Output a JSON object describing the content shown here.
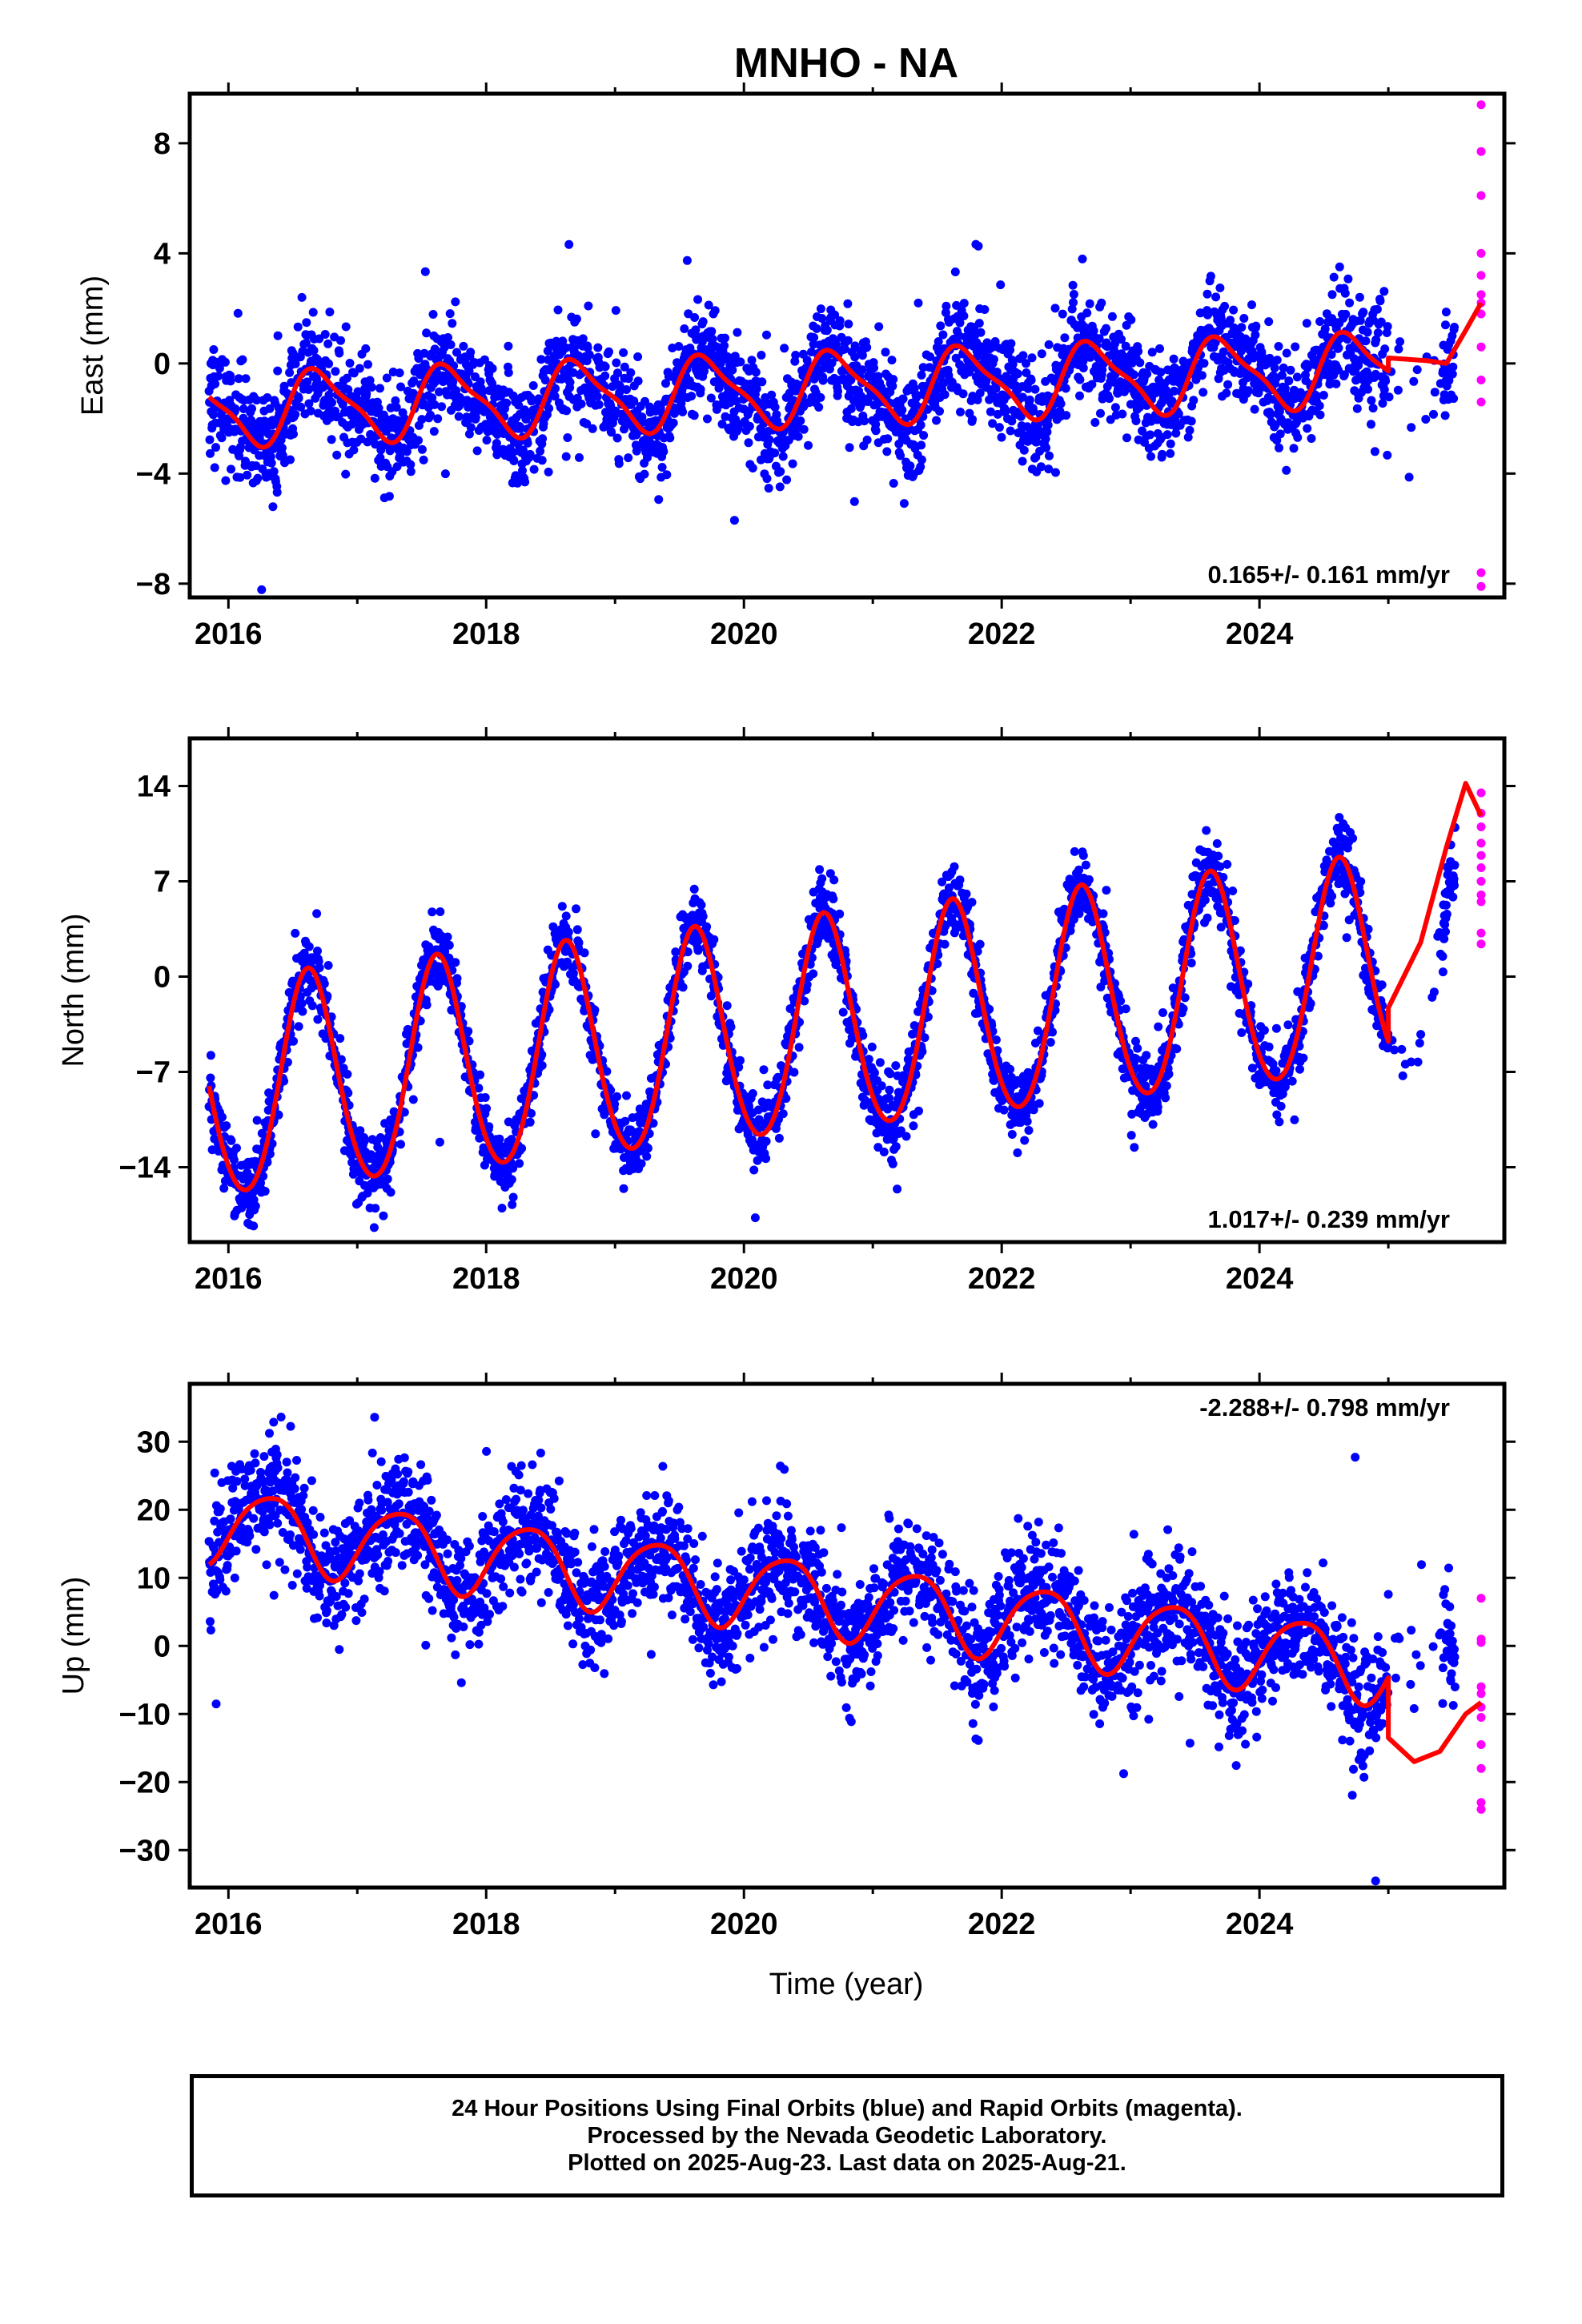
{
  "figure": {
    "title": "MNHO - NA",
    "xlabel": "Time (year)",
    "footer": [
      "24 Hour Positions Using Final Orbits (blue) and Rapid Orbits (magenta).",
      "Processed by the Nevada Geodetic Laboratory.",
      "Plotted on 2025-Aug-23. Last data on 2025-Aug-21."
    ],
    "colors": {
      "final_orbits": "#0000ff",
      "rapid_orbits": "#ff00ff",
      "model_fit": "#ff0000"
    }
  },
  "chart_data": [
    {
      "type": "scatter",
      "panel": "east",
      "ylabel": "East (mm)",
      "rate_label": "0.165+/- 0.161 mm/yr",
      "rate_position": "bottom-right",
      "xlim": [
        2015.7,
        2025.9
      ],
      "ylim": [
        -8.5,
        9.8
      ],
      "xticks": [
        2016,
        2018,
        2020,
        2022,
        2024
      ],
      "yticks": [
        -8,
        -4,
        0,
        4,
        8
      ],
      "ytick_labels": [
        "−8",
        "−4",
        "0",
        "4",
        "8"
      ],
      "model": {
        "slope": 0.165,
        "offset": -1.0,
        "amp_annual": 1.25,
        "phase_annual": -2.9,
        "amp_semi": 0.35,
        "phase_semi": 0.6
      },
      "scatter_sd": 0.95,
      "rapid_values": [
        9.4,
        7.7,
        6.1,
        4.0,
        3.2,
        2.5,
        2.2,
        1.8,
        0.6,
        -0.6,
        -1.4,
        -7.6,
        -8.1
      ],
      "fit_tail": [
        [
          2025.0,
          0.2
        ],
        [
          2025.3,
          0.1
        ],
        [
          2025.45,
          0.0
        ],
        [
          2025.6,
          1.2
        ],
        [
          2025.72,
          2.2
        ]
      ]
    },
    {
      "type": "scatter",
      "panel": "north",
      "ylabel": "North (mm)",
      "rate_label": "1.017+/- 0.239 mm/yr",
      "rate_position": "bottom-right",
      "xlim": [
        2015.7,
        2025.9
      ],
      "ylim": [
        -19.5,
        17.5
      ],
      "xticks": [
        2016,
        2018,
        2020,
        2022,
        2024
      ],
      "yticks": [
        -14,
        -7,
        0,
        7,
        14
      ],
      "ytick_labels": [
        "−14",
        "−7",
        "0",
        "7",
        "14"
      ],
      "model": {
        "slope": 1.017,
        "offset": -4.4,
        "amp_annual": 7.9,
        "phase_annual": -2.35,
        "amp_semi": 0.6,
        "phase_semi": 0.3
      },
      "scatter_sd": 1.3,
      "rapid_values": [
        13.5,
        12.0,
        11.0,
        9.8,
        8.9,
        8.0,
        7.0,
        6.0,
        5.5,
        3.2,
        2.4
      ],
      "fit_tail": [
        [
          2025.0,
          -2.3
        ],
        [
          2025.25,
          2.5
        ],
        [
          2025.45,
          9.5
        ],
        [
          2025.6,
          14.2
        ],
        [
          2025.72,
          11.8
        ]
      ]
    },
    {
      "type": "scatter",
      "panel": "up",
      "ylabel": "Up (mm)",
      "rate_label": "-2.288+/- 0.798 mm/yr",
      "rate_position": "top-right",
      "xlim": [
        2015.7,
        2025.9
      ],
      "ylim": [
        -35.5,
        38.5
      ],
      "xticks": [
        2016,
        2018,
        2020,
        2022,
        2024
      ],
      "yticks": [
        -30,
        -20,
        -10,
        0,
        10,
        20,
        30
      ],
      "ytick_labels": [
        "−30",
        "−20",
        "−10",
        "0",
        "10",
        "20",
        "30"
      ],
      "model": {
        "slope": -2.288,
        "offset": 8.5,
        "amp_annual": 5.5,
        "phase_annual": -0.45,
        "amp_semi": 0.8,
        "phase_semi": 1.0
      },
      "scatter_sd": 4.2,
      "rapid_values": [
        7.0,
        1.0,
        0.5,
        -6.0,
        -7.0,
        -9.0,
        -10.5,
        -14.5,
        -18.0,
        -23.0,
        -24.0
      ],
      "fit_tail": [
        [
          2025.0,
          -13.5
        ],
        [
          2025.2,
          -17.0
        ],
        [
          2025.4,
          -15.5
        ],
        [
          2025.6,
          -10.0
        ],
        [
          2025.72,
          -8.3
        ]
      ]
    }
  ]
}
